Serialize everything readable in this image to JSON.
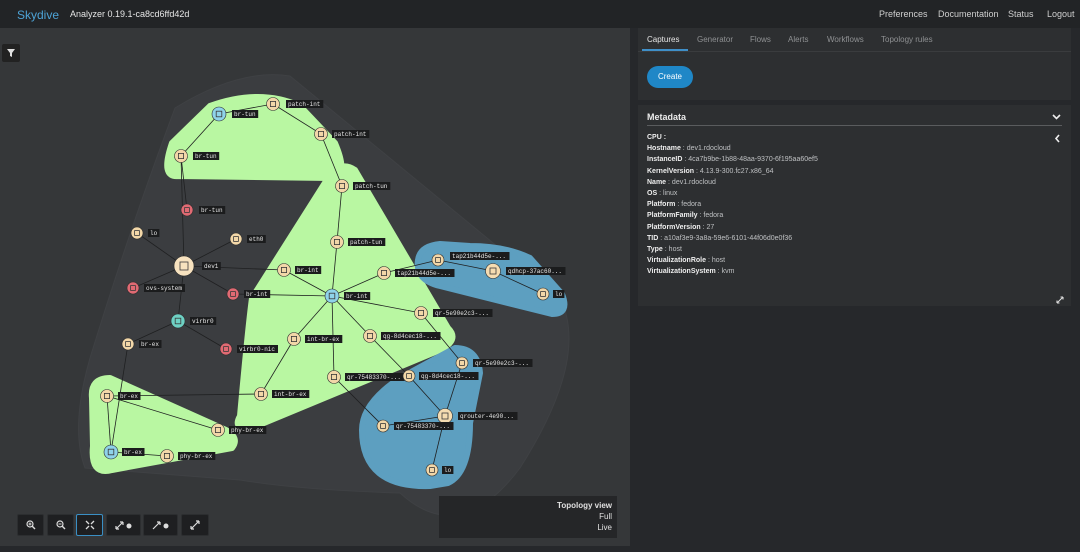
{
  "app": {
    "brand": "Skydive",
    "version": "Analyzer 0.19.1-ca8cd6ffd42d"
  },
  "nav": [
    "Preferences",
    "Documentation",
    "Status",
    "Logout"
  ],
  "tabs": [
    "Captures",
    "Generator",
    "Flows",
    "Alerts",
    "Workflows",
    "Topology rules"
  ],
  "create_label": "Create",
  "metadata": {
    "title": "Metadata",
    "cpu_label": "CPU :",
    "rows": [
      {
        "key": "Hostname",
        "value": "dev1.rdocloud"
      },
      {
        "key": "InstanceID",
        "value": "4ca7b9be-1b88-48aa-9370-6f195aa60ef5"
      },
      {
        "key": "KernelVersion",
        "value": "4.13.9-300.fc27.x86_64"
      },
      {
        "key": "Name",
        "value": "dev1.rdocloud"
      },
      {
        "key": "OS",
        "value": "linux"
      },
      {
        "key": "Platform",
        "value": "fedora"
      },
      {
        "key": "PlatformFamily",
        "value": "fedora"
      },
      {
        "key": "PlatformVersion",
        "value": "27"
      },
      {
        "key": "TID",
        "value": "a10af3e9-3a8a-59e6-6101-44f06d0e0f36"
      },
      {
        "key": "Type",
        "value": "host"
      },
      {
        "key": "VirtualizationRole",
        "value": "host"
      },
      {
        "key": "VirtualizationSystem",
        "value": "kvm"
      }
    ]
  },
  "topology_view": {
    "title": "Topology view",
    "mode": "Full",
    "state": "Live"
  },
  "nodes": [
    {
      "label": "br-tun",
      "type": "bridge"
    },
    {
      "label": "patch-int",
      "type": "port"
    },
    {
      "label": "patch-int",
      "type": "port"
    },
    {
      "label": "br-tun",
      "type": "port"
    },
    {
      "label": "br-tun",
      "type": "iface-down"
    },
    {
      "label": "lo",
      "type": "iface"
    },
    {
      "label": "eth0",
      "type": "iface"
    },
    {
      "label": "dev1",
      "type": "host"
    },
    {
      "label": "ovs-system",
      "type": "iface-down"
    },
    {
      "label": "br-int",
      "type": "iface-down"
    },
    {
      "label": "virbr0",
      "type": "bridge-linux"
    },
    {
      "label": "virbr0-nic",
      "type": "iface-down"
    },
    {
      "label": "br-ex",
      "type": "iface"
    },
    {
      "label": "patch-tun",
      "type": "port"
    },
    {
      "label": "patch-tun",
      "type": "port"
    },
    {
      "label": "br-int",
      "type": "port"
    },
    {
      "label": "br-int",
      "type": "bridge"
    },
    {
      "label": "tap21b44d5e-...",
      "type": "port"
    },
    {
      "label": "tap21b44d5e-...",
      "type": "iface"
    },
    {
      "label": "qdhcp-37ac60...",
      "type": "netns"
    },
    {
      "label": "lo",
      "type": "iface"
    },
    {
      "label": "qr-5e90e2c3-...",
      "type": "port"
    },
    {
      "label": "int-br-ex",
      "type": "port"
    },
    {
      "label": "qg-8d4cec18-...",
      "type": "port"
    },
    {
      "label": "qr-75483370-...",
      "type": "port"
    },
    {
      "label": "qg-8d4cec18-...",
      "type": "iface"
    },
    {
      "label": "qr-5e90e2c3-...",
      "type": "iface"
    },
    {
      "label": "qrouter-4e90...",
      "type": "netns"
    },
    {
      "label": "qr-75483370-...",
      "type": "iface"
    },
    {
      "label": "lo",
      "type": "iface"
    },
    {
      "label": "int-br-ex",
      "type": "port"
    },
    {
      "label": "br-ex",
      "type": "port"
    },
    {
      "label": "phy-br-ex",
      "type": "port"
    },
    {
      "label": "br-ex",
      "type": "bridge"
    },
    {
      "label": "phy-br-ex",
      "type": "port"
    }
  ],
  "edges": [
    [
      0,
      1
    ],
    [
      1,
      2
    ],
    [
      0,
      3
    ],
    [
      3,
      4
    ],
    [
      2,
      13
    ],
    [
      13,
      14
    ],
    [
      14,
      16
    ],
    [
      15,
      16
    ],
    [
      16,
      17
    ],
    [
      17,
      18
    ],
    [
      18,
      19
    ],
    [
      19,
      20
    ],
    [
      16,
      21
    ],
    [
      21,
      26
    ],
    [
      16,
      22
    ],
    [
      22,
      30
    ],
    [
      16,
      23
    ],
    [
      23,
      25
    ],
    [
      16,
      24
    ],
    [
      24,
      28
    ],
    [
      25,
      27
    ],
    [
      26,
      27
    ],
    [
      27,
      28
    ],
    [
      27,
      29
    ],
    [
      30,
      31
    ],
    [
      31,
      33
    ],
    [
      33,
      34
    ],
    [
      32,
      31
    ],
    [
      7,
      5
    ],
    [
      7,
      6
    ],
    [
      7,
      8
    ],
    [
      7,
      9
    ],
    [
      7,
      10
    ],
    [
      7,
      3
    ],
    [
      7,
      15
    ],
    [
      10,
      11
    ],
    [
      10,
      12
    ],
    [
      12,
      33
    ],
    [
      9,
      16
    ]
  ],
  "groups": [
    {
      "name": "host-dev1",
      "color": "#3b3d40"
    },
    {
      "name": "br-tun-group",
      "color": "#b9f7a2"
    },
    {
      "name": "br-int-group",
      "color": "#b9f7a2"
    },
    {
      "name": "br-ex-group",
      "color": "#b9f7a2"
    },
    {
      "name": "qdhcp-group",
      "color": "#5d9fc0"
    },
    {
      "name": "qrouter-group",
      "color": "#5d9fc0"
    }
  ]
}
